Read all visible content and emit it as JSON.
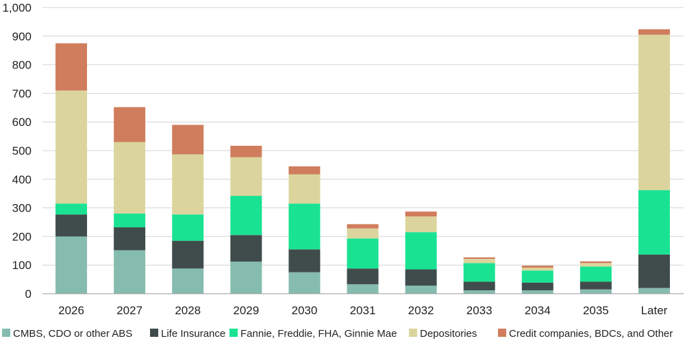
{
  "chart_data": {
    "type": "bar",
    "stacked": true,
    "categories": [
      "2026",
      "2027",
      "2028",
      "2029",
      "2030",
      "2031",
      "2032",
      "2033",
      "2034",
      "2035",
      "Later"
    ],
    "series": [
      {
        "name": "CMBS, CDO or other ABS",
        "color": "#86bcaf",
        "values": [
          200,
          152,
          88,
          112,
          75,
          33,
          28,
          12,
          12,
          15,
          20
        ]
      },
      {
        "name": "Life Insurance",
        "color": "#404c4c",
        "values": [
          77,
          80,
          97,
          93,
          80,
          55,
          57,
          30,
          27,
          27,
          117
        ]
      },
      {
        "name": "Fannie, Freddie, FHA, Ginnie Mae",
        "color": "#19e393",
        "values": [
          38,
          48,
          92,
          137,
          160,
          105,
          130,
          65,
          42,
          53,
          225
        ]
      },
      {
        "name": "Depositories",
        "color": "#dbd59d",
        "values": [
          395,
          250,
          210,
          135,
          102,
          35,
          55,
          15,
          10,
          12,
          543
        ]
      },
      {
        "name": "Credit companies, BDCs, and Other",
        "color": "#d07d5d",
        "values": [
          165,
          122,
          103,
          40,
          28,
          15,
          17,
          5,
          7,
          6,
          19
        ]
      }
    ],
    "y_ticks": [
      "0",
      "100",
      "200",
      "300",
      "400",
      "500",
      "600",
      "700",
      "800",
      "900",
      "1,000"
    ],
    "ylim": [
      0,
      1000
    ],
    "grid": true,
    "legend": "bottom",
    "title": "",
    "xlabel": "",
    "ylabel": ""
  }
}
